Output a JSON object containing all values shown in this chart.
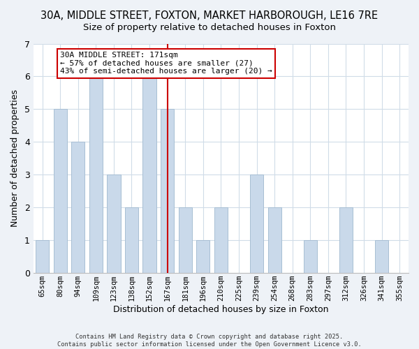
{
  "title": "30A, MIDDLE STREET, FOXTON, MARKET HARBOROUGH, LE16 7RE",
  "subtitle": "Size of property relative to detached houses in Foxton",
  "xlabel": "Distribution of detached houses by size in Foxton",
  "ylabel": "Number of detached properties",
  "categories": [
    "65sqm",
    "80sqm",
    "94sqm",
    "109sqm",
    "123sqm",
    "138sqm",
    "152sqm",
    "167sqm",
    "181sqm",
    "196sqm",
    "210sqm",
    "225sqm",
    "239sqm",
    "254sqm",
    "268sqm",
    "283sqm",
    "297sqm",
    "312sqm",
    "326sqm",
    "341sqm",
    "355sqm"
  ],
  "values": [
    1,
    5,
    4,
    6,
    3,
    2,
    6,
    5,
    2,
    1,
    2,
    0,
    3,
    2,
    0,
    1,
    0,
    2,
    0,
    1,
    0
  ],
  "bar_color": "#c9d9ea",
  "bar_edgecolor": "#a8bfd4",
  "highlight_index": 7,
  "highlight_line_color": "#cc0000",
  "ylim": [
    0,
    7
  ],
  "yticks": [
    0,
    1,
    2,
    3,
    4,
    5,
    6,
    7
  ],
  "annotation_title": "30A MIDDLE STREET: 171sqm",
  "annotation_line1": "← 57% of detached houses are smaller (27)",
  "annotation_line2": "43% of semi-detached houses are larger (20) →",
  "annotation_box_color": "#ffffff",
  "annotation_box_edgecolor": "#cc0000",
  "footer_line1": "Contains HM Land Registry data © Crown copyright and database right 2025.",
  "footer_line2": "Contains public sector information licensed under the Open Government Licence v3.0.",
  "background_color": "#eef2f7",
  "plot_background_color": "#ffffff",
  "title_fontsize": 10.5,
  "subtitle_fontsize": 9.5,
  "bar_width": 0.75,
  "grid_color": "#d0dce8",
  "ann_fontsize": 8.0,
  "tick_fontsize": 7.5,
  "ylabel_fontsize": 9,
  "xlabel_fontsize": 9
}
